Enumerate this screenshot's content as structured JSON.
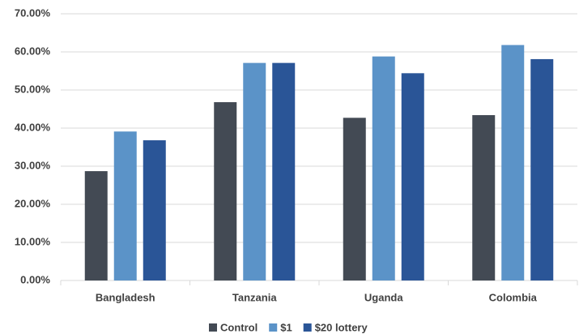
{
  "chart_data": {
    "type": "bar",
    "categories": [
      "Bangladesh",
      "Tanzania",
      "Uganda",
      "Colombia"
    ],
    "series": [
      {
        "name": "Control",
        "color": "#434a54",
        "values": [
          28.7,
          46.8,
          42.7,
          43.4
        ]
      },
      {
        "name": "$1",
        "color": "#5b93c8",
        "values": [
          39.1,
          57.1,
          58.8,
          61.8
        ]
      },
      {
        "name": "$20 lottery",
        "color": "#2a5597",
        "values": [
          36.8,
          57.1,
          54.4,
          58.1
        ]
      }
    ],
    "ylim": [
      0,
      70
    ],
    "yticks": [
      {
        "value": 0,
        "label": "0.00%"
      },
      {
        "value": 10,
        "label": "10.00%"
      },
      {
        "value": 20,
        "label": "20.00%"
      },
      {
        "value": 30,
        "label": "30.00%"
      },
      {
        "value": 40,
        "label": "40.00%"
      },
      {
        "value": 50,
        "label": "50.00%"
      },
      {
        "value": 60,
        "label": "60.00%"
      },
      {
        "value": 70,
        "label": "70.00%"
      }
    ],
    "grid": true,
    "legend": "bottom"
  }
}
